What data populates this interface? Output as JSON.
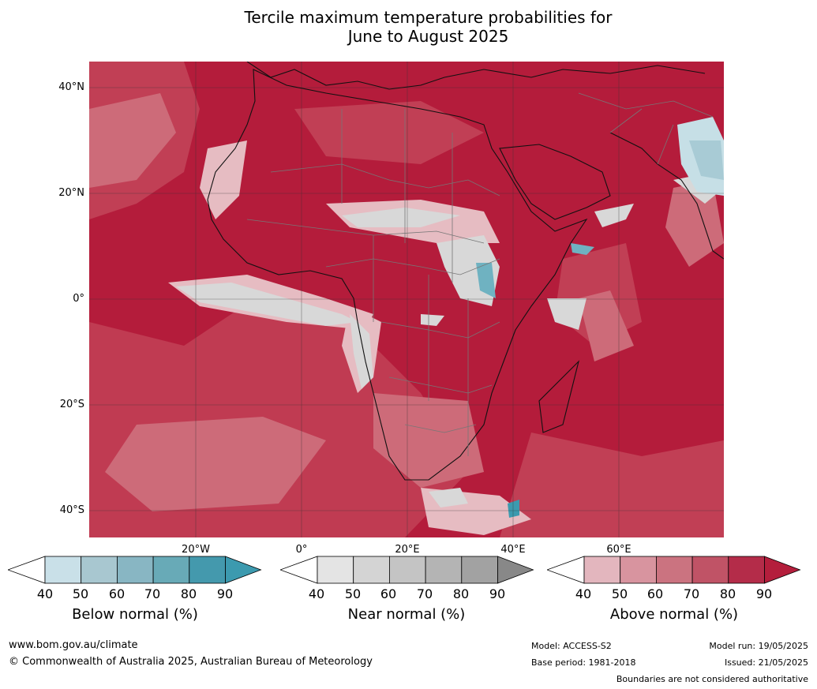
{
  "title_line1": "Tercile maximum temperature probabilities for",
  "title_line2": "June to August 2025",
  "lat_labels": [
    "40°N",
    "20°N",
    "0°",
    "20°S",
    "40°S"
  ],
  "lon_labels": [
    "20°W",
    "0°",
    "20°E",
    "40°E",
    "60°E"
  ],
  "colorbars": [
    {
      "label": "Below normal (%)",
      "ticks": [
        "40",
        "50",
        "60",
        "70",
        "80",
        "90"
      ],
      "colors": [
        "#ffffff",
        "#c9e0e8",
        "#a8c7d0",
        "#88b6c3",
        "#68aab7",
        "#4499ad",
        "#3c9aaf"
      ]
    },
    {
      "label": "Near normal (%)",
      "ticks": [
        "40",
        "50",
        "60",
        "70",
        "80",
        "90"
      ],
      "colors": [
        "#ffffff",
        "#e4e4e4",
        "#d4d4d4",
        "#c4c4c4",
        "#b4b4b4",
        "#a2a2a2",
        "#888888"
      ]
    },
    {
      "label": "Above normal (%)",
      "ticks": [
        "40",
        "50",
        "60",
        "70",
        "80",
        "90"
      ],
      "colors": [
        "#ffffff",
        "#e3b6be",
        "#d8949f",
        "#cb7380",
        "#c05366",
        "#b42c49",
        "#b41e3c"
      ]
    }
  ],
  "footer": {
    "website": "www.bom.gov.au/climate",
    "copyright": "© Commonwealth of Australia 2025, Australian Bureau of Meteorology",
    "model": "Model: ACCESS-S2",
    "base_period": "Base period: 1981-2018",
    "model_run": "Model run: 19/05/2025",
    "issued": "Issued: 21/05/2025",
    "disclaimer": "Boundaries are not considered authoritative"
  },
  "map_colors": {
    "above_90": "#b41c3b",
    "above_80": "#c13f55",
    "above_70": "#cd6b79",
    "above_60": "#d9949e",
    "above_50": "#e6bcc2",
    "near_normal": "#d8d8d8",
    "near_light": "#ececec",
    "below_normal": "#6fb2c1",
    "below_light": "#c6dfe6"
  }
}
